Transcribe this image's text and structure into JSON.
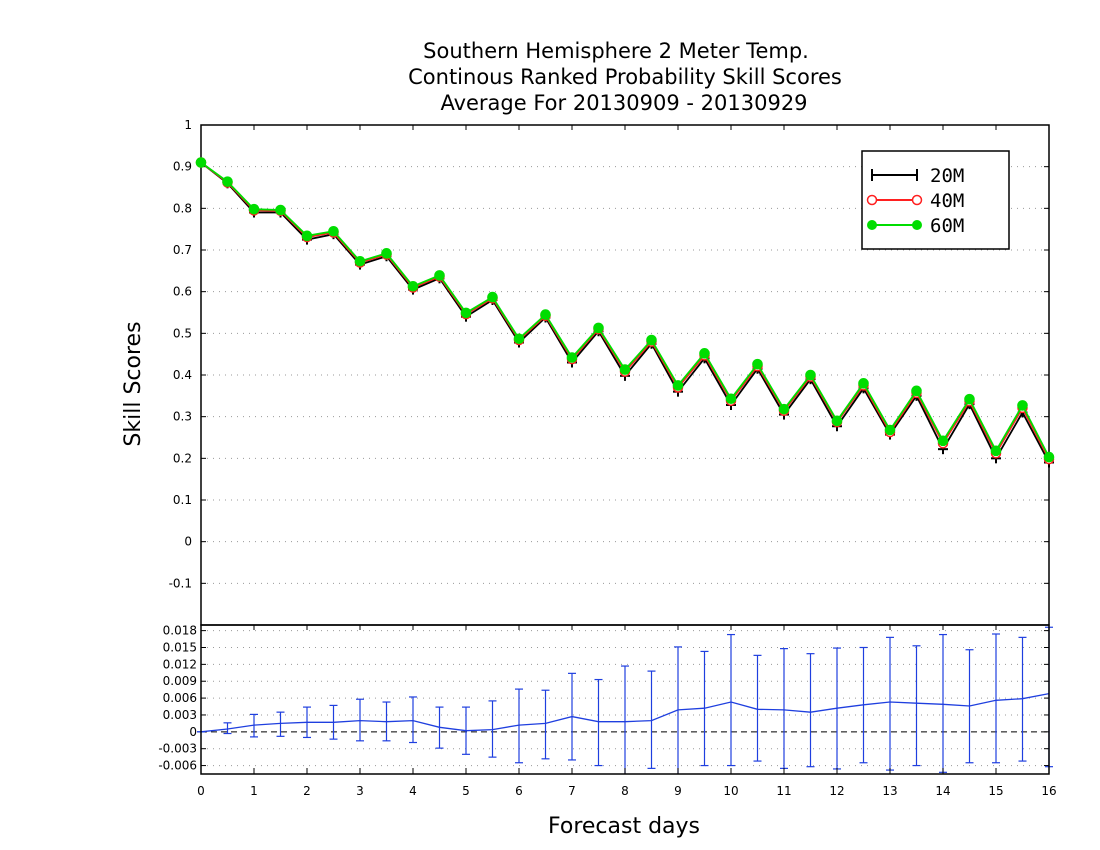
{
  "chart_data": [
    {
      "type": "line",
      "title": [
        "Southern Hemisphere 2 Meter Temp.",
        "Continous Ranked Probability Skill Scores",
        "Average For 20130909 - 20130929"
      ],
      "ylabel": "Skill Scores",
      "ylim": [
        -0.2,
        1.0
      ],
      "yticks": [
        "1",
        "0.9",
        "0.8",
        "0.7",
        "0.6",
        "0.5",
        "0.4",
        "0.3",
        "0.2",
        "0.1",
        "0",
        "-0.1",
        "-0.2"
      ],
      "ytick_values": [
        1.0,
        0.9,
        0.8,
        0.7,
        0.6,
        0.5,
        0.4,
        0.3,
        0.2,
        0.1,
        0.0,
        -0.1,
        -0.2
      ],
      "grid": true,
      "legend_position": "top-right",
      "x": [
        0,
        0.5,
        1,
        1.5,
        2,
        2.5,
        3,
        3.5,
        4,
        4.5,
        5,
        5.5,
        6,
        6.5,
        7,
        7.5,
        8,
        8.5,
        9,
        9.5,
        10,
        10.5,
        11,
        11.5,
        12,
        12.5,
        13,
        13.5,
        14,
        14.5,
        15,
        15.5,
        16
      ],
      "series": [
        {
          "name": "20M",
          "color": "#000000",
          "marker": "plus",
          "values": [
            0.91,
            0.86,
            0.79,
            0.79,
            0.725,
            0.738,
            0.665,
            0.685,
            0.605,
            0.632,
            0.54,
            0.58,
            0.478,
            0.538,
            0.43,
            0.505,
            0.398,
            0.475,
            0.36,
            0.44,
            0.328,
            0.415,
            0.305,
            0.39,
            0.277,
            0.368,
            0.257,
            0.35,
            0.222,
            0.33,
            0.2,
            0.31,
            0.19
          ]
        },
        {
          "name": "40M",
          "color": "#ff2020",
          "marker": "open-circle",
          "values": [
            0.91,
            0.862,
            0.795,
            0.794,
            0.731,
            0.742,
            0.67,
            0.689,
            0.61,
            0.636,
            0.546,
            0.584,
            0.484,
            0.542,
            0.438,
            0.51,
            0.408,
            0.48,
            0.37,
            0.447,
            0.338,
            0.421,
            0.314,
            0.396,
            0.287,
            0.375,
            0.263,
            0.357,
            0.236,
            0.337,
            0.212,
            0.321,
            0.198
          ]
        },
        {
          "name": "60M",
          "color": "#00dd00",
          "marker": "filled-circle",
          "values": [
            0.91,
            0.864,
            0.798,
            0.796,
            0.734,
            0.745,
            0.673,
            0.692,
            0.613,
            0.639,
            0.549,
            0.587,
            0.487,
            0.545,
            0.442,
            0.513,
            0.413,
            0.484,
            0.375,
            0.452,
            0.343,
            0.426,
            0.318,
            0.4,
            0.29,
            0.38,
            0.268,
            0.362,
            0.242,
            0.342,
            0.218,
            0.327,
            0.203
          ]
        }
      ]
    },
    {
      "type": "line",
      "xlabel": "Forecast days",
      "xlim": [
        0,
        16
      ],
      "xticks": [
        "0",
        "1",
        "2",
        "3",
        "4",
        "5",
        "6",
        "7",
        "8",
        "9",
        "10",
        "11",
        "12",
        "13",
        "14",
        "15",
        "16"
      ],
      "ylim": [
        -0.0075,
        0.019
      ],
      "yticks": [
        "0.018",
        "0.015",
        "0.012",
        "0.009",
        "0.006",
        "0.003",
        "0",
        "-0.003",
        "-0.006"
      ],
      "ytick_values": [
        0.018,
        0.015,
        0.012,
        0.009,
        0.006,
        0.003,
        0.0,
        -0.003,
        -0.006
      ],
      "zero_line": "dashed",
      "x": [
        0,
        0.5,
        1,
        1.5,
        2,
        2.5,
        3,
        3.5,
        4,
        4.5,
        5,
        5.5,
        6,
        6.5,
        7,
        7.5,
        8,
        8.5,
        9,
        9.5,
        10,
        10.5,
        11,
        11.5,
        12,
        12.5,
        13,
        13.5,
        14,
        14.5,
        15,
        15.5,
        16
      ],
      "series": [
        {
          "color": "#1f3fdf",
          "values": [
            0,
            0.0005,
            0.0012,
            0.0015,
            0.0017,
            0.0017,
            0.002,
            0.0018,
            0.002,
            0.0008,
            0.0002,
            0.0004,
            0.0012,
            0.0015,
            0.0027,
            0.0018,
            0.0018,
            0.002,
            0.0039,
            0.0042,
            0.0053,
            0.004,
            0.0039,
            0.0035,
            0.0042,
            0.0048,
            0.0053,
            0.0051,
            0.0049,
            0.0046,
            0.0056,
            0.0059,
            0.0068
          ],
          "error_low": [
            0,
            -0.0003,
            -0.0009,
            -0.0008,
            -0.001,
            -0.0013,
            -0.0016,
            -0.0016,
            -0.0019,
            -0.0029,
            -0.004,
            -0.0045,
            -0.0055,
            -0.0048,
            -0.005,
            -0.006,
            -0.0083,
            -0.0065,
            -0.0079,
            -0.006,
            -0.006,
            -0.0052,
            -0.0065,
            -0.0062,
            -0.0066,
            -0.0055,
            -0.0068,
            -0.006,
            -0.0072,
            -0.0055,
            -0.0055,
            -0.0052,
            -0.0062
          ],
          "error_high": [
            0,
            0.0016,
            0.0031,
            0.0035,
            0.0044,
            0.0047,
            0.0058,
            0.0053,
            0.0062,
            0.0044,
            0.0044,
            0.0055,
            0.0076,
            0.0074,
            0.0104,
            0.0093,
            0.0117,
            0.0108,
            0.0151,
            0.0143,
            0.0173,
            0.0136,
            0.0148,
            0.0139,
            0.0149,
            0.015,
            0.0168,
            0.0153,
            0.0173,
            0.0146,
            0.0174,
            0.0168,
            0.0186
          ]
        }
      ]
    }
  ]
}
